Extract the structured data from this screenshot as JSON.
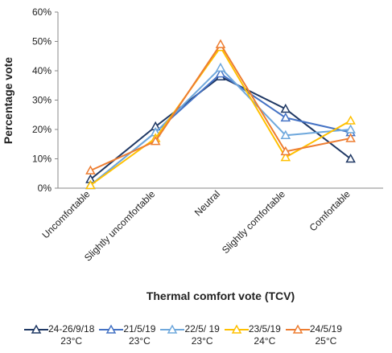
{
  "chart_data": {
    "type": "line",
    "x_label": "Thermal comfort vote (TCV)",
    "y_label": "Percentage vote",
    "categories": [
      "Uncomfortable",
      "Slightly uncomfortable",
      "Neutral",
      "Slightly comfortable",
      "Comfortable"
    ],
    "series": [
      {
        "name": "24-26/9/18\n23°C",
        "color": "#1f3864",
        "values": [
          3,
          21,
          38,
          27,
          10
        ]
      },
      {
        "name": "21/5/19\n23°C",
        "color": "#4472c4",
        "values": [
          1,
          19,
          39,
          24,
          19
        ]
      },
      {
        "name": "22/5/ 19\n23°C",
        "color": "#6fa8dc",
        "values": [
          1,
          19,
          41,
          18,
          20
        ]
      },
      {
        "name": "23/5/19\n24°C",
        "color": "#ffc000",
        "values": [
          1,
          17,
          48,
          10.5,
          23
        ]
      },
      {
        "name": "24/5/19\n25°C",
        "color": "#ed7d31",
        "values": [
          6,
          16,
          49,
          12.5,
          17
        ]
      }
    ],
    "ylim": [
      0,
      60
    ],
    "yticks": [
      {
        "value": 0,
        "label": "0%"
      },
      {
        "value": 10,
        "label": "10%"
      },
      {
        "value": 20,
        "label": "20%"
      },
      {
        "value": 30,
        "label": "30%"
      },
      {
        "value": 40,
        "label": "40%"
      },
      {
        "value": 50,
        "label": "50%"
      },
      {
        "value": 60,
        "label": "60%"
      }
    ],
    "legend": "bottom"
  }
}
